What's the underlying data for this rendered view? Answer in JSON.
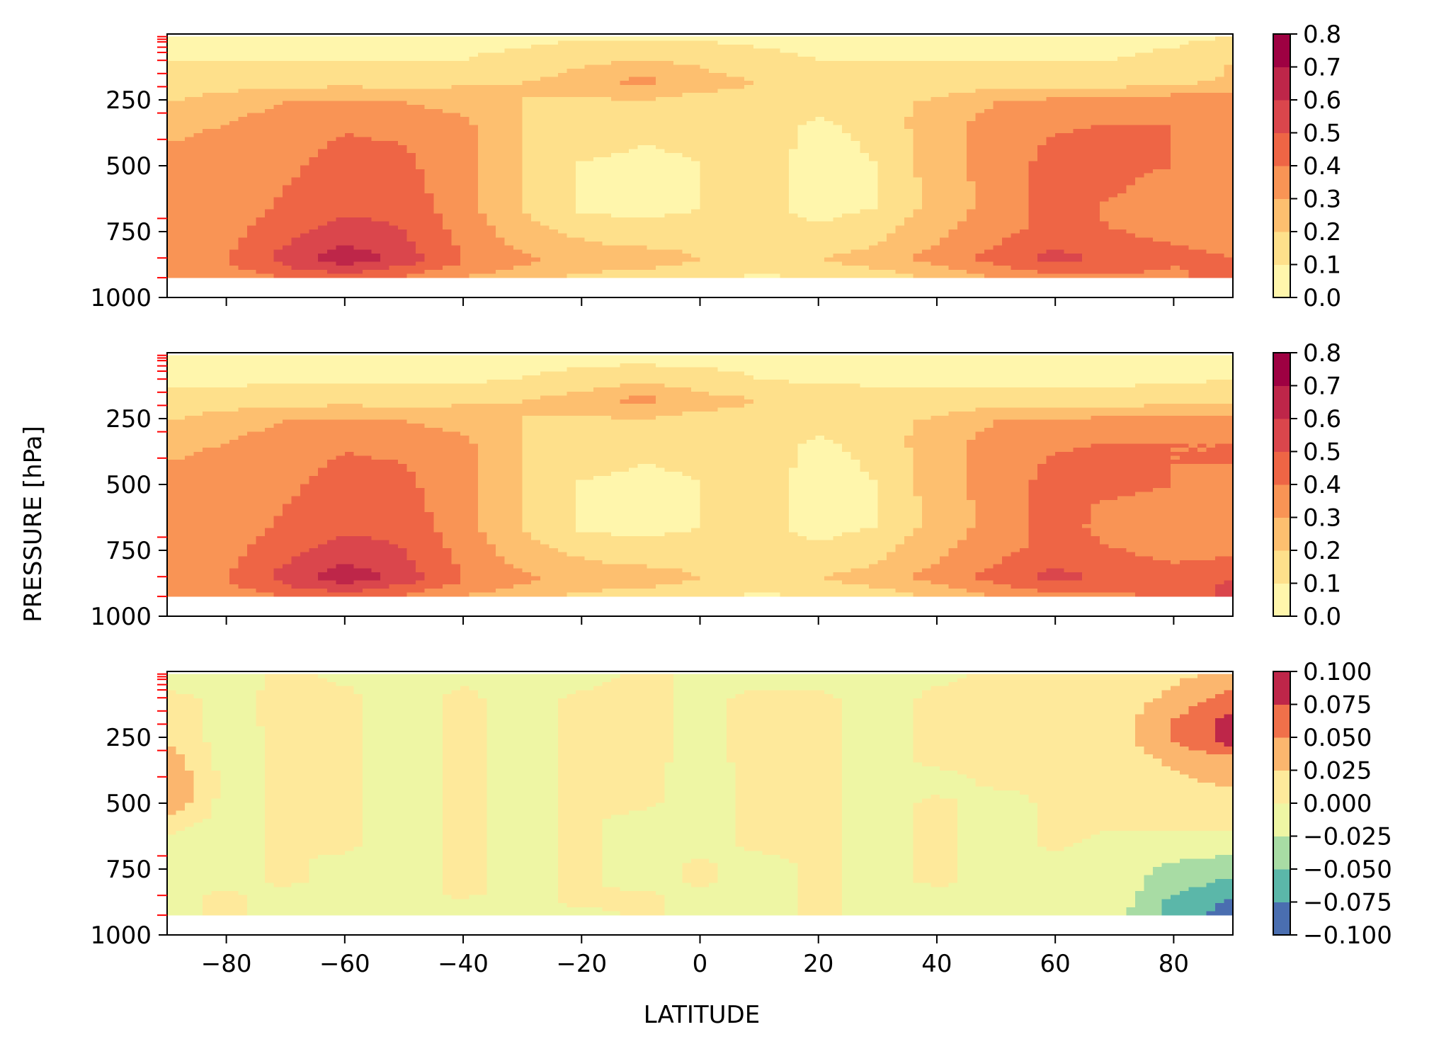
{
  "figure": {
    "ylabel": "PRESSURE [hPa]",
    "xlabel": "LATITUDE"
  },
  "chart_data": [
    {
      "type": "heatmap",
      "panel": "top",
      "x_ticks": [
        -80,
        -60,
        -40,
        -20,
        0,
        20,
        40,
        60,
        80
      ],
      "x_tick_labels": [
        "−80",
        "−60",
        "−40",
        "−20",
        "0",
        "20",
        "40",
        "60",
        "80"
      ],
      "y_ticks": [
        250,
        500,
        750,
        1000
      ],
      "y_tick_labels": [
        "250",
        "500",
        "750",
        "1000"
      ],
      "xlim": [
        -90,
        90
      ],
      "ylim": [
        1000,
        0
      ],
      "colorbar_levels": [
        0.0,
        0.1,
        0.2,
        0.3,
        0.4,
        0.5,
        0.6,
        0.7,
        0.8
      ],
      "colorbar_labels": [
        "0.0",
        "0.1",
        "0.2",
        "0.3",
        "0.4",
        "0.5",
        "0.6",
        "0.7",
        "0.8"
      ],
      "colorbar_colors": [
        "#fff6ac",
        "#fee08b",
        "#fdbf6f",
        "#f99455",
        "#ee6545",
        "#da464c",
        "#be2649",
        "#9e0142"
      ],
      "grid_lat": [
        -90,
        -80,
        -70,
        -60,
        -50,
        -40,
        -30,
        -20,
        -10,
        0,
        10,
        20,
        30,
        40,
        50,
        60,
        70,
        80,
        90
      ],
      "grid_p": [
        10,
        100,
        180,
        260,
        340,
        420,
        500,
        580,
        660,
        740,
        800,
        850,
        880,
        925
      ],
      "values": [
        [
          0.08,
          0.08,
          0.08,
          0.08,
          0.08,
          0.08,
          0.08,
          0.08,
          0.08,
          0.08,
          0.08,
          0.08,
          0.08,
          0.08,
          0.08,
          0.08,
          0.08,
          0.08,
          0.1
        ],
        [
          0.1,
          0.1,
          0.1,
          0.1,
          0.1,
          0.1,
          0.12,
          0.18,
          0.2,
          0.18,
          0.12,
          0.1,
          0.1,
          0.1,
          0.1,
          0.1,
          0.1,
          0.12,
          0.2
        ],
        [
          0.12,
          0.14,
          0.16,
          0.16,
          0.16,
          0.18,
          0.2,
          0.24,
          0.34,
          0.24,
          0.2,
          0.16,
          0.14,
          0.14,
          0.14,
          0.14,
          0.14,
          0.16,
          0.22
        ],
        [
          0.2,
          0.26,
          0.3,
          0.32,
          0.3,
          0.26,
          0.2,
          0.18,
          0.18,
          0.16,
          0.18,
          0.16,
          0.16,
          0.22,
          0.3,
          0.34,
          0.36,
          0.38,
          0.38
        ],
        [
          0.26,
          0.3,
          0.34,
          0.38,
          0.36,
          0.32,
          0.2,
          0.16,
          0.12,
          0.14,
          0.16,
          0.08,
          0.14,
          0.26,
          0.34,
          0.38,
          0.4,
          0.4,
          0.4
        ],
        [
          0.3,
          0.34,
          0.36,
          0.42,
          0.4,
          0.34,
          0.2,
          0.16,
          0.1,
          0.12,
          0.16,
          0.06,
          0.12,
          0.26,
          0.34,
          0.42,
          0.44,
          0.4,
          0.36
        ],
        [
          0.3,
          0.34,
          0.38,
          0.44,
          0.42,
          0.34,
          0.2,
          0.08,
          0.06,
          0.1,
          0.14,
          0.06,
          0.1,
          0.26,
          0.34,
          0.44,
          0.44,
          0.4,
          0.36
        ],
        [
          0.3,
          0.34,
          0.4,
          0.46,
          0.44,
          0.34,
          0.2,
          0.08,
          0.06,
          0.1,
          0.14,
          0.06,
          0.1,
          0.24,
          0.34,
          0.44,
          0.42,
          0.34,
          0.34
        ],
        [
          0.3,
          0.34,
          0.42,
          0.48,
          0.46,
          0.34,
          0.2,
          0.08,
          0.06,
          0.1,
          0.14,
          0.06,
          0.1,
          0.24,
          0.34,
          0.44,
          0.38,
          0.34,
          0.34
        ],
        [
          0.32,
          0.36,
          0.46,
          0.54,
          0.5,
          0.36,
          0.24,
          0.16,
          0.14,
          0.14,
          0.14,
          0.12,
          0.16,
          0.28,
          0.36,
          0.44,
          0.4,
          0.36,
          0.36
        ],
        [
          0.34,
          0.38,
          0.5,
          0.6,
          0.52,
          0.38,
          0.28,
          0.22,
          0.18,
          0.16,
          0.16,
          0.16,
          0.2,
          0.3,
          0.4,
          0.48,
          0.44,
          0.4,
          0.38
        ],
        [
          0.36,
          0.4,
          0.54,
          0.68,
          0.56,
          0.4,
          0.32,
          0.26,
          0.3,
          0.2,
          0.18,
          0.2,
          0.24,
          0.34,
          0.44,
          0.54,
          0.46,
          0.42,
          0.4
        ],
        [
          0.34,
          0.38,
          0.5,
          0.6,
          0.5,
          0.38,
          0.3,
          0.24,
          0.22,
          0.18,
          0.16,
          0.18,
          0.22,
          0.3,
          0.4,
          0.48,
          0.44,
          0.4,
          0.42
        ],
        [
          0.3,
          0.34,
          0.4,
          0.44,
          0.38,
          0.3,
          0.22,
          0.18,
          0.14,
          0.1,
          0.08,
          0.1,
          0.14,
          0.22,
          0.3,
          0.36,
          0.38,
          0.38,
          0.44
        ]
      ],
      "red_ticks_hpa": [
        10,
        20,
        30,
        50,
        70,
        100,
        150,
        200,
        300,
        400,
        700,
        850,
        925
      ]
    },
    {
      "type": "heatmap",
      "panel": "middle",
      "x_ticks": [
        -80,
        -60,
        -40,
        -20,
        0,
        20,
        40,
        60,
        80
      ],
      "x_tick_labels": [
        "−80",
        "−60",
        "−40",
        "−20",
        "0",
        "20",
        "40",
        "60",
        "80"
      ],
      "y_ticks": [
        250,
        500,
        750,
        1000
      ],
      "y_tick_labels": [
        "250",
        "500",
        "750",
        "1000"
      ],
      "xlim": [
        -90,
        90
      ],
      "ylim": [
        1000,
        0
      ],
      "colorbar_levels": [
        0.0,
        0.1,
        0.2,
        0.3,
        0.4,
        0.5,
        0.6,
        0.7,
        0.8
      ],
      "colorbar_labels": [
        "0.0",
        "0.1",
        "0.2",
        "0.3",
        "0.4",
        "0.5",
        "0.6",
        "0.7",
        "0.8"
      ],
      "colorbar_colors": [
        "#fff6ac",
        "#fee08b",
        "#fdbf6f",
        "#f99455",
        "#ee6545",
        "#da464c",
        "#be2649",
        "#9e0142"
      ],
      "grid_lat": [
        -90,
        -80,
        -70,
        -60,
        -50,
        -40,
        -30,
        -20,
        -10,
        0,
        10,
        20,
        30,
        40,
        50,
        60,
        70,
        80,
        90
      ],
      "grid_p": [
        10,
        100,
        180,
        260,
        340,
        420,
        500,
        580,
        660,
        740,
        800,
        850,
        880,
        925
      ],
      "values": [
        [
          0.06,
          0.06,
          0.06,
          0.06,
          0.06,
          0.06,
          0.06,
          0.06,
          0.06,
          0.06,
          0.06,
          0.06,
          0.06,
          0.06,
          0.06,
          0.06,
          0.06,
          0.06,
          0.06
        ],
        [
          0.08,
          0.08,
          0.08,
          0.08,
          0.08,
          0.08,
          0.1,
          0.14,
          0.16,
          0.14,
          0.1,
          0.08,
          0.08,
          0.08,
          0.08,
          0.08,
          0.08,
          0.08,
          0.1
        ],
        [
          0.12,
          0.14,
          0.16,
          0.16,
          0.16,
          0.18,
          0.2,
          0.24,
          0.34,
          0.24,
          0.2,
          0.16,
          0.14,
          0.14,
          0.14,
          0.14,
          0.14,
          0.16,
          0.18
        ],
        [
          0.2,
          0.26,
          0.3,
          0.32,
          0.3,
          0.26,
          0.2,
          0.18,
          0.18,
          0.16,
          0.18,
          0.16,
          0.16,
          0.22,
          0.3,
          0.32,
          0.34,
          0.34,
          0.34
        ],
        [
          0.26,
          0.3,
          0.34,
          0.38,
          0.36,
          0.32,
          0.2,
          0.16,
          0.12,
          0.14,
          0.16,
          0.08,
          0.14,
          0.26,
          0.34,
          0.38,
          0.4,
          0.4,
          0.4
        ],
        [
          0.3,
          0.34,
          0.36,
          0.42,
          0.4,
          0.34,
          0.2,
          0.16,
          0.1,
          0.12,
          0.16,
          0.06,
          0.12,
          0.26,
          0.34,
          0.42,
          0.44,
          0.4,
          0.4
        ],
        [
          0.3,
          0.34,
          0.38,
          0.44,
          0.42,
          0.34,
          0.2,
          0.08,
          0.06,
          0.1,
          0.14,
          0.06,
          0.1,
          0.26,
          0.34,
          0.44,
          0.44,
          0.4,
          0.34
        ],
        [
          0.3,
          0.34,
          0.4,
          0.46,
          0.44,
          0.34,
          0.2,
          0.08,
          0.06,
          0.1,
          0.14,
          0.06,
          0.1,
          0.24,
          0.34,
          0.44,
          0.38,
          0.34,
          0.36
        ],
        [
          0.3,
          0.34,
          0.42,
          0.48,
          0.46,
          0.34,
          0.2,
          0.08,
          0.06,
          0.1,
          0.14,
          0.06,
          0.1,
          0.24,
          0.34,
          0.44,
          0.36,
          0.34,
          0.36
        ],
        [
          0.32,
          0.36,
          0.46,
          0.54,
          0.5,
          0.36,
          0.24,
          0.16,
          0.14,
          0.14,
          0.14,
          0.12,
          0.16,
          0.28,
          0.36,
          0.44,
          0.4,
          0.36,
          0.38
        ],
        [
          0.34,
          0.38,
          0.5,
          0.6,
          0.52,
          0.38,
          0.28,
          0.22,
          0.18,
          0.16,
          0.16,
          0.16,
          0.2,
          0.3,
          0.4,
          0.48,
          0.44,
          0.4,
          0.42
        ],
        [
          0.36,
          0.4,
          0.54,
          0.68,
          0.56,
          0.4,
          0.32,
          0.26,
          0.3,
          0.2,
          0.18,
          0.2,
          0.24,
          0.34,
          0.44,
          0.54,
          0.46,
          0.42,
          0.48
        ],
        [
          0.34,
          0.38,
          0.5,
          0.6,
          0.5,
          0.38,
          0.3,
          0.24,
          0.22,
          0.18,
          0.16,
          0.18,
          0.22,
          0.3,
          0.4,
          0.48,
          0.44,
          0.44,
          0.52
        ],
        [
          0.3,
          0.34,
          0.4,
          0.44,
          0.38,
          0.3,
          0.22,
          0.18,
          0.14,
          0.1,
          0.08,
          0.1,
          0.14,
          0.22,
          0.3,
          0.36,
          0.38,
          0.42,
          0.54
        ]
      ],
      "red_ticks_hpa": [
        10,
        20,
        30,
        50,
        70,
        100,
        150,
        200,
        300,
        400,
        700,
        850,
        925
      ]
    },
    {
      "type": "heatmap",
      "panel": "bottom",
      "x_ticks": [
        -80,
        -60,
        -40,
        -20,
        0,
        20,
        40,
        60,
        80
      ],
      "x_tick_labels": [
        "−80",
        "−60",
        "−40",
        "−20",
        "0",
        "20",
        "40",
        "60",
        "80"
      ],
      "y_ticks": [
        250,
        500,
        750,
        1000
      ],
      "y_tick_labels": [
        "250",
        "500",
        "750",
        "1000"
      ],
      "xlim": [
        -90,
        90
      ],
      "ylim": [
        1000,
        0
      ],
      "colorbar_levels": [
        -0.1,
        -0.075,
        -0.05,
        -0.025,
        0.0,
        0.025,
        0.05,
        0.075,
        0.1
      ],
      "colorbar_labels": [
        "−0.100",
        "−0.075",
        "−0.050",
        "−0.025",
        "0.000",
        "0.025",
        "0.050",
        "0.075",
        "0.100"
      ],
      "colorbar_colors": [
        "#4a6eb0",
        "#5bb7a9",
        "#a8dca4",
        "#eef6a4",
        "#fee99b",
        "#fbb66e",
        "#f0704a",
        "#be2649"
      ],
      "grid_lat": [
        -90,
        -80,
        -70,
        -60,
        -50,
        -40,
        -30,
        -20,
        -10,
        0,
        10,
        20,
        30,
        40,
        50,
        60,
        70,
        80,
        90
      ],
      "grid_p": [
        10,
        100,
        180,
        260,
        340,
        420,
        500,
        580,
        660,
        740,
        800,
        850,
        880,
        925
      ],
      "values": [
        [
          -0.01,
          -0.01,
          0.005,
          -0.005,
          -0.01,
          -0.005,
          -0.01,
          -0.01,
          0.005,
          -0.005,
          -0.01,
          -0.01,
          -0.01,
          -0.005,
          0.005,
          0.005,
          0.01,
          0.02,
          0.03
        ],
        [
          0.005,
          -0.005,
          0.005,
          0.005,
          -0.01,
          0.005,
          -0.01,
          0.005,
          0.005,
          -0.005,
          0.005,
          0.005,
          -0.01,
          0.005,
          0.005,
          0.005,
          0.01,
          0.03,
          0.06
        ],
        [
          0.01,
          -0.005,
          0.005,
          0.005,
          -0.01,
          0.005,
          -0.01,
          0.005,
          0.005,
          -0.005,
          0.005,
          0.005,
          -0.01,
          0.005,
          0.005,
          0.005,
          0.01,
          0.05,
          0.085
        ],
        [
          0.02,
          -0.01,
          0.005,
          0.005,
          -0.01,
          0.005,
          -0.01,
          0.005,
          0.005,
          -0.005,
          0.005,
          0.005,
          -0.01,
          0.005,
          0.005,
          0.005,
          0.01,
          0.05,
          0.09
        ],
        [
          0.04,
          -0.01,
          0.005,
          0.005,
          -0.01,
          0.005,
          -0.01,
          0.005,
          0.005,
          -0.005,
          0.005,
          0.005,
          -0.01,
          0.005,
          0.005,
          0.005,
          0.01,
          0.03,
          0.04
        ],
        [
          0.055,
          -0.01,
          0.005,
          0.005,
          -0.01,
          0.005,
          -0.01,
          0.005,
          0.005,
          -0.01,
          0.005,
          0.005,
          -0.01,
          -0.01,
          0.005,
          0.005,
          0.01,
          0.02,
          0.03
        ],
        [
          0.045,
          -0.01,
          0.005,
          0.005,
          -0.01,
          0.005,
          -0.01,
          0.005,
          0.005,
          -0.01,
          0.005,
          0.005,
          -0.01,
          0.005,
          -0.01,
          0.005,
          0.01,
          0.01,
          0.01
        ],
        [
          0.01,
          -0.01,
          0.005,
          0.005,
          -0.01,
          0.005,
          -0.01,
          0.005,
          -0.01,
          -0.01,
          0.005,
          0.005,
          -0.01,
          0.005,
          -0.01,
          0.005,
          0.005,
          0.005,
          0.005
        ],
        [
          -0.01,
          -0.01,
          0.005,
          0.005,
          -0.01,
          0.005,
          -0.01,
          0.005,
          -0.01,
          -0.01,
          0.005,
          0.005,
          -0.01,
          0.005,
          -0.01,
          0.005,
          -0.01,
          -0.01,
          -0.01
        ],
        [
          -0.01,
          -0.01,
          0.005,
          -0.01,
          -0.01,
          0.005,
          -0.01,
          0.005,
          -0.01,
          0.005,
          -0.01,
          0.005,
          -0.01,
          0.005,
          -0.01,
          -0.01,
          -0.01,
          -0.03,
          -0.04
        ],
        [
          -0.01,
          -0.01,
          0.005,
          -0.01,
          -0.01,
          0.005,
          -0.01,
          0.005,
          -0.01,
          0.005,
          -0.01,
          0.005,
          -0.01,
          0.005,
          -0.01,
          -0.01,
          -0.01,
          -0.04,
          -0.055
        ],
        [
          -0.01,
          0.005,
          -0.01,
          -0.01,
          -0.01,
          0.005,
          -0.01,
          0.005,
          0.005,
          -0.01,
          -0.01,
          0.005,
          -0.01,
          -0.01,
          -0.01,
          -0.01,
          -0.01,
          -0.05,
          -0.07
        ],
        [
          -0.01,
          0.005,
          -0.01,
          -0.01,
          -0.01,
          -0.01,
          -0.01,
          0.005,
          0.005,
          -0.01,
          -0.01,
          0.005,
          -0.01,
          -0.01,
          -0.01,
          -0.01,
          -0.01,
          -0.06,
          -0.08
        ],
        [
          -0.01,
          0.005,
          -0.01,
          -0.01,
          -0.01,
          -0.01,
          -0.01,
          -0.01,
          0.005,
          -0.01,
          -0.01,
          0.005,
          -0.01,
          -0.01,
          -0.01,
          -0.01,
          -0.02,
          -0.06,
          -0.085
        ]
      ],
      "red_ticks_hpa": [
        10,
        20,
        30,
        50,
        70,
        100,
        150,
        200,
        300,
        400,
        700,
        850,
        925
      ]
    }
  ]
}
